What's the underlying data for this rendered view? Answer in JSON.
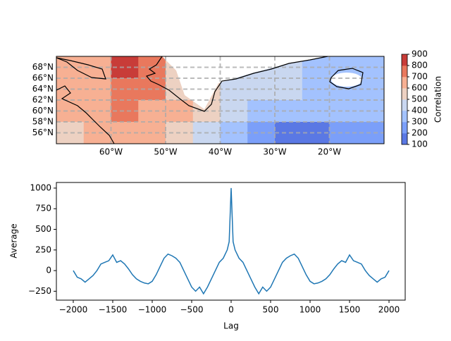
{
  "chart_data": [
    {
      "type": "contour",
      "colorbar_label": "Correlation",
      "lon_edges": [
        -70,
        -65,
        -60,
        -55,
        -50,
        -45,
        -40,
        -35,
        -30,
        -25,
        -20,
        -15,
        -10
      ],
      "lat_edges": [
        70,
        66,
        62,
        58,
        54
      ],
      "z": [
        [
          600,
          650,
          850,
          700,
          500,
          450,
          450,
          450,
          400,
          350,
          350,
          350
        ],
        [
          600,
          650,
          700,
          700,
          550,
          500,
          450,
          450,
          400,
          350,
          350,
          350
        ],
        [
          600,
          650,
          700,
          650,
          600,
          500,
          400,
          350,
          300,
          300,
          300,
          300
        ],
        [
          550,
          600,
          650,
          600,
          500,
          400,
          300,
          200,
          150,
          150,
          200,
          250
        ]
      ],
      "levels": [
        100,
        200,
        300,
        400,
        500,
        600,
        700,
        800,
        900
      ],
      "level_colors": [
        "#5a78e4",
        "#7b9ff9",
        "#a3c2fe",
        "#c9d7f0",
        "#edd1c2",
        "#f7b093",
        "#e9785d",
        "#c83c38"
      ],
      "xlim": [
        -70,
        -10
      ],
      "ylim": [
        54,
        70
      ],
      "xticks": [
        {
          "value": -60,
          "label": "60°W"
        },
        {
          "value": -50,
          "label": "50°W"
        },
        {
          "value": -40,
          "label": "40°W"
        },
        {
          "value": -30,
          "label": "30°W"
        },
        {
          "value": -20,
          "label": "20°W"
        }
      ],
      "yticks": [
        {
          "value": 56,
          "label": "56°N"
        },
        {
          "value": 58,
          "label": "58°N"
        },
        {
          "value": 60,
          "label": "60°N"
        },
        {
          "value": 62,
          "label": "62°N"
        },
        {
          "value": 64,
          "label": "64°N"
        },
        {
          "value": 66,
          "label": "66°N"
        },
        {
          "value": 68,
          "label": "68°N"
        }
      ],
      "grid": true
    },
    {
      "type": "line",
      "xlabel": "Lag",
      "ylabel": "Average",
      "color": "#1f77b4",
      "x": [
        -2000,
        -1950,
        -1900,
        -1850,
        -1800,
        -1750,
        -1700,
        -1650,
        -1600,
        -1550,
        -1500,
        -1450,
        -1400,
        -1350,
        -1300,
        -1250,
        -1200,
        -1150,
        -1100,
        -1050,
        -1000,
        -950,
        -900,
        -850,
        -800,
        -750,
        -700,
        -650,
        -600,
        -550,
        -500,
        -450,
        -400,
        -350,
        -300,
        -250,
        -200,
        -150,
        -100,
        -50,
        -25,
        0,
        25,
        50,
        100,
        150,
        200,
        250,
        300,
        350,
        400,
        450,
        500,
        550,
        600,
        650,
        700,
        750,
        800,
        850,
        900,
        950,
        1000,
        1050,
        1100,
        1150,
        1200,
        1250,
        1300,
        1350,
        1400,
        1450,
        1500,
        1550,
        1600,
        1650,
        1700,
        1750,
        1800,
        1850,
        1900,
        1950,
        2000
      ],
      "values": [
        0,
        -80,
        -100,
        -140,
        -100,
        -60,
        0,
        80,
        100,
        120,
        190,
        100,
        120,
        80,
        20,
        -50,
        -100,
        -130,
        -150,
        -160,
        -130,
        -50,
        50,
        150,
        200,
        180,
        150,
        100,
        0,
        -100,
        -200,
        -250,
        -200,
        -280,
        -200,
        -100,
        0,
        100,
        150,
        250,
        350,
        1000,
        350,
        250,
        150,
        100,
        0,
        -100,
        -200,
        -280,
        -200,
        -250,
        -200,
        -100,
        0,
        100,
        150,
        180,
        200,
        150,
        50,
        -50,
        -130,
        -160,
        -150,
        -130,
        -100,
        -50,
        20,
        80,
        120,
        100,
        190,
        120,
        100,
        80,
        0,
        -60,
        -100,
        -140,
        -100,
        -80,
        0
      ],
      "xlim": [
        -2214,
        2205
      ],
      "ylim": [
        -358,
        1068
      ],
      "xticks": [
        {
          "value": -2000,
          "label": "−2000"
        },
        {
          "value": -1500,
          "label": "−1500"
        },
        {
          "value": -1000,
          "label": "−1000"
        },
        {
          "value": -500,
          "label": "−500"
        },
        0,
        500,
        1000,
        1500,
        2000
      ],
      "yticks": [
        {
          "value": -250,
          "label": "−250"
        },
        0,
        250,
        500,
        750,
        1000
      ]
    }
  ]
}
